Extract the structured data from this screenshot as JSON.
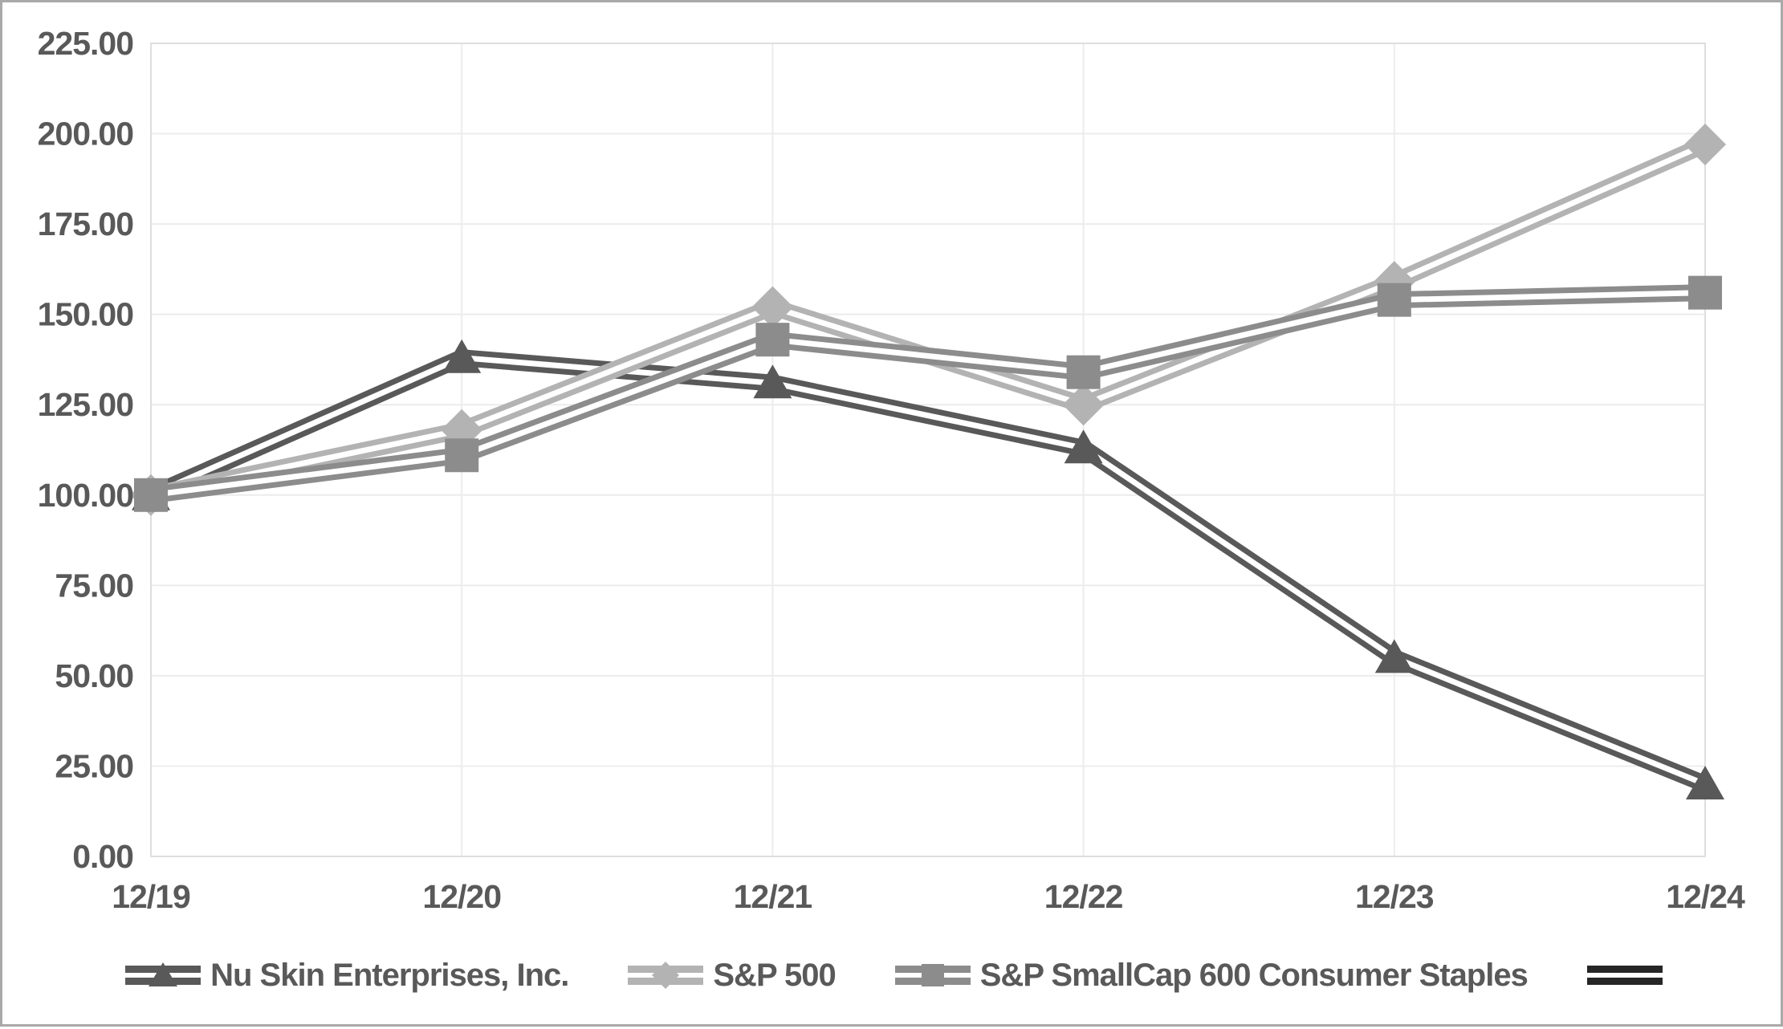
{
  "chart_data": {
    "type": "line",
    "title": "",
    "xlabel": "",
    "ylabel": "",
    "x_categories": [
      "12/19",
      "12/20",
      "12/21",
      "12/22",
      "12/23",
      "12/24"
    ],
    "y_ticks": [
      0,
      25,
      50,
      75,
      100,
      125,
      150,
      175,
      200,
      225
    ],
    "y_tick_labels": [
      "0.00",
      "25.00",
      "50.00",
      "75.00",
      "100.00",
      "125.00",
      "150.00",
      "175.00",
      "200.00",
      "225.00"
    ],
    "ylim": [
      0,
      225
    ],
    "grid": "on",
    "legend_position": "bottom",
    "line_style": "double",
    "series": [
      {
        "name": "Nu Skin Enterprises, Inc.",
        "marker": "triangle",
        "color": "#595959",
        "values": [
          100,
          138,
          131,
          113,
          55,
          20
        ]
      },
      {
        "name": "S&P 500",
        "marker": "diamond",
        "color": "#b3b3b3",
        "values": [
          100,
          118,
          152,
          125,
          159,
          197
        ]
      },
      {
        "name": "S&P SmallCap 600 Consumer Staples",
        "marker": "square",
        "color": "#8c8c8c",
        "values": [
          100,
          111,
          143,
          134,
          154,
          156
        ]
      },
      {
        "name": "",
        "marker": "none",
        "color": "#262626",
        "values": []
      }
    ],
    "colors": {
      "axis_label": "#595959",
      "gridline": "#ececec",
      "plot_border": "#dedede",
      "frame_border": "#a9a9a9",
      "background": "#ffffff"
    }
  }
}
